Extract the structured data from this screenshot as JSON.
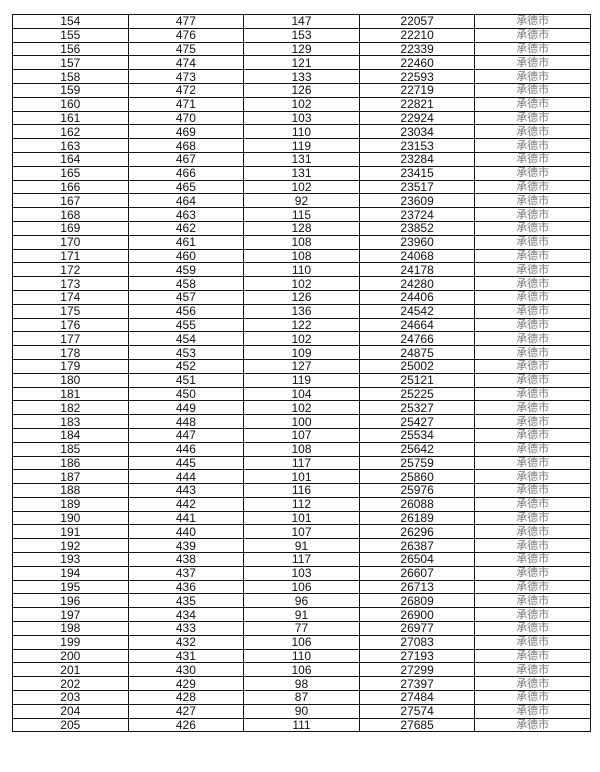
{
  "table": {
    "city": "承德市",
    "rows": [
      [
        154,
        477,
        147,
        22057
      ],
      [
        155,
        476,
        153,
        22210
      ],
      [
        156,
        475,
        129,
        22339
      ],
      [
        157,
        474,
        121,
        22460
      ],
      [
        158,
        473,
        133,
        22593
      ],
      [
        159,
        472,
        126,
        22719
      ],
      [
        160,
        471,
        102,
        22821
      ],
      [
        161,
        470,
        103,
        22924
      ],
      [
        162,
        469,
        110,
        23034
      ],
      [
        163,
        468,
        119,
        23153
      ],
      [
        164,
        467,
        131,
        23284
      ],
      [
        165,
        466,
        131,
        23415
      ],
      [
        166,
        465,
        102,
        23517
      ],
      [
        167,
        464,
        92,
        23609
      ],
      [
        168,
        463,
        115,
        23724
      ],
      [
        169,
        462,
        128,
        23852
      ],
      [
        170,
        461,
        108,
        23960
      ],
      [
        171,
        460,
        108,
        24068
      ],
      [
        172,
        459,
        110,
        24178
      ],
      [
        173,
        458,
        102,
        24280
      ],
      [
        174,
        457,
        126,
        24406
      ],
      [
        175,
        456,
        136,
        24542
      ],
      [
        176,
        455,
        122,
        24664
      ],
      [
        177,
        454,
        102,
        24766
      ],
      [
        178,
        453,
        109,
        24875
      ],
      [
        179,
        452,
        127,
        25002
      ],
      [
        180,
        451,
        119,
        25121
      ],
      [
        181,
        450,
        104,
        25225
      ],
      [
        182,
        449,
        102,
        25327
      ],
      [
        183,
        448,
        100,
        25427
      ],
      [
        184,
        447,
        107,
        25534
      ],
      [
        185,
        446,
        108,
        25642
      ],
      [
        186,
        445,
        117,
        25759
      ],
      [
        187,
        444,
        101,
        25860
      ],
      [
        188,
        443,
        116,
        25976
      ],
      [
        189,
        442,
        112,
        26088
      ],
      [
        190,
        441,
        101,
        26189
      ],
      [
        191,
        440,
        107,
        26296
      ],
      [
        192,
        439,
        91,
        26387
      ],
      [
        193,
        438,
        117,
        26504
      ],
      [
        194,
        437,
        103,
        26607
      ],
      [
        195,
        436,
        106,
        26713
      ],
      [
        196,
        435,
        96,
        26809
      ],
      [
        197,
        434,
        91,
        26900
      ],
      [
        198,
        433,
        77,
        26977
      ],
      [
        199,
        432,
        106,
        27083
      ],
      [
        200,
        431,
        110,
        27193
      ],
      [
        201,
        430,
        106,
        27299
      ],
      [
        202,
        429,
        98,
        27397
      ],
      [
        203,
        428,
        87,
        27484
      ],
      [
        204,
        427,
        90,
        27574
      ],
      [
        205,
        426,
        111,
        27685
      ]
    ]
  }
}
